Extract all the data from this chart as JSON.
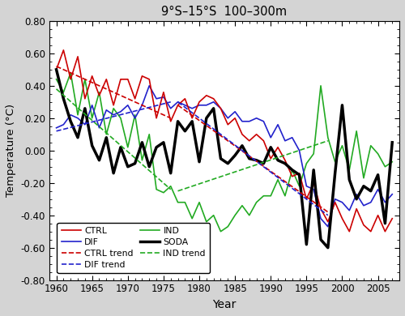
{
  "title": "9°S–15°S  100–300m",
  "xlabel": "Year",
  "ylabel": "Temperature (°C)",
  "xlim": [
    1959,
    2008
  ],
  "ylim": [
    -0.8,
    0.8
  ],
  "yticks": [
    -0.8,
    -0.6,
    -0.4,
    -0.2,
    0.0,
    0.2,
    0.4,
    0.6,
    0.8
  ],
  "xticks": [
    1960,
    1965,
    1970,
    1975,
    1980,
    1985,
    1990,
    1995,
    2000,
    2005
  ],
  "soda_years": [
    1960,
    1961,
    1962,
    1963,
    1964,
    1965,
    1966,
    1967,
    1968,
    1969,
    1970,
    1971,
    1972,
    1973,
    1974,
    1975,
    1976,
    1977,
    1978,
    1979,
    1980,
    1981,
    1982,
    1983,
    1984,
    1985,
    1986,
    1987,
    1988,
    1989,
    1990,
    1991,
    1992,
    1993,
    1994,
    1995,
    1996,
    1997,
    1998,
    1999,
    2000,
    2001,
    2002,
    2003,
    2004,
    2005,
    2006,
    2007
  ],
  "soda_vals": [
    0.5,
    0.32,
    0.18,
    0.08,
    0.26,
    0.03,
    -0.06,
    0.08,
    -0.14,
    0.02,
    -0.1,
    -0.08,
    0.05,
    -0.1,
    0.02,
    0.05,
    -0.14,
    0.18,
    0.12,
    0.18,
    -0.07,
    0.2,
    0.26,
    -0.05,
    -0.08,
    -0.03,
    0.03,
    -0.05,
    -0.06,
    -0.08,
    0.02,
    -0.06,
    -0.08,
    -0.12,
    -0.15,
    -0.58,
    -0.12,
    -0.55,
    -0.6,
    -0.14,
    0.28,
    -0.18,
    -0.3,
    -0.22,
    -0.25,
    -0.15,
    -0.45,
    0.05
  ],
  "ctrl_years": [
    1960,
    1961,
    1962,
    1963,
    1964,
    1965,
    1966,
    1967,
    1968,
    1969,
    1970,
    1971,
    1972,
    1973,
    1974,
    1975,
    1976,
    1977,
    1978,
    1979,
    1980,
    1981,
    1982,
    1983,
    1984,
    1985,
    1986,
    1987,
    1988,
    1989,
    1990,
    1991,
    1992,
    1993,
    1994,
    1995,
    1996,
    1997,
    1998,
    1999,
    2000,
    2001,
    2002,
    2003,
    2004,
    2005,
    2006,
    2007
  ],
  "ctrl_vals": [
    0.5,
    0.62,
    0.44,
    0.58,
    0.32,
    0.46,
    0.34,
    0.44,
    0.28,
    0.44,
    0.44,
    0.32,
    0.46,
    0.44,
    0.2,
    0.36,
    0.18,
    0.28,
    0.32,
    0.2,
    0.3,
    0.34,
    0.32,
    0.26,
    0.16,
    0.2,
    0.1,
    0.06,
    0.1,
    0.06,
    -0.05,
    0.02,
    -0.06,
    -0.16,
    -0.14,
    -0.3,
    -0.2,
    -0.36,
    -0.44,
    -0.32,
    -0.42,
    -0.5,
    -0.36,
    -0.46,
    -0.5,
    -0.4,
    -0.5,
    -0.42
  ],
  "ind_years": [
    1960,
    1961,
    1962,
    1963,
    1964,
    1965,
    1966,
    1967,
    1968,
    1969,
    1970,
    1971,
    1972,
    1973,
    1974,
    1975,
    1976,
    1977,
    1978,
    1979,
    1980,
    1981,
    1982,
    1983,
    1984,
    1985,
    1986,
    1987,
    1988,
    1989,
    1990,
    1991,
    1992,
    1993,
    1994,
    1995,
    1996,
    1997,
    1998,
    1999,
    2000,
    2001,
    2002,
    2003,
    2004,
    2005,
    2006,
    2007
  ],
  "ind_vals": [
    0.44,
    0.36,
    0.48,
    0.22,
    0.44,
    0.2,
    0.36,
    0.1,
    0.26,
    0.2,
    0.02,
    0.22,
    -0.06,
    0.1,
    -0.24,
    -0.26,
    -0.22,
    -0.32,
    -0.32,
    -0.42,
    -0.32,
    -0.44,
    -0.4,
    -0.5,
    -0.47,
    -0.4,
    -0.34,
    -0.4,
    -0.32,
    -0.28,
    -0.28,
    -0.18,
    -0.28,
    -0.12,
    -0.22,
    -0.08,
    -0.02,
    0.4,
    0.08,
    -0.07,
    0.03,
    -0.12,
    0.12,
    -0.17,
    0.03,
    -0.02,
    -0.1,
    -0.07
  ],
  "dif_years": [
    1960,
    1961,
    1962,
    1963,
    1964,
    1965,
    1966,
    1967,
    1968,
    1969,
    1970,
    1971,
    1972,
    1973,
    1974,
    1975,
    1976,
    1977,
    1978,
    1979,
    1980,
    1981,
    1982,
    1983,
    1984,
    1985,
    1986,
    1987,
    1988,
    1989,
    1990,
    1991,
    1992,
    1993,
    1994,
    1995,
    1996,
    1997,
    1998,
    1999,
    2000,
    2001,
    2002,
    2003,
    2004,
    2005,
    2006,
    2007
  ],
  "dif_vals": [
    0.14,
    0.16,
    0.22,
    0.2,
    0.16,
    0.28,
    0.14,
    0.25,
    0.22,
    0.24,
    0.28,
    0.2,
    0.28,
    0.4,
    0.32,
    0.33,
    0.26,
    0.3,
    0.28,
    0.26,
    0.28,
    0.28,
    0.3,
    0.26,
    0.2,
    0.24,
    0.18,
    0.18,
    0.2,
    0.18,
    0.08,
    0.16,
    0.06,
    0.08,
    0.0,
    -0.22,
    -0.24,
    -0.42,
    -0.47,
    -0.3,
    -0.32,
    -0.37,
    -0.27,
    -0.34,
    -0.32,
    -0.24,
    -0.32,
    -0.27
  ],
  "ctrl_trend1_x": [
    1960,
    1976
  ],
  "ctrl_trend1_y": [
    0.52,
    0.2
  ],
  "ctrl_trend2_x": [
    1977,
    1998
  ],
  "ctrl_trend2_y": [
    0.28,
    -0.38
  ],
  "ind_trend1_x": [
    1960,
    1976
  ],
  "ind_trend1_y": [
    0.38,
    -0.24
  ],
  "ind_trend2_x": [
    1977,
    1998
  ],
  "ind_trend2_y": [
    -0.25,
    0.06
  ],
  "dif_trend1_x": [
    1960,
    1976
  ],
  "dif_trend1_y": [
    0.12,
    0.3
  ],
  "dif_trend2_x": [
    1977,
    1998
  ],
  "dif_trend2_y": [
    0.3,
    -0.4
  ],
  "colors": {
    "soda": "#000000",
    "ctrl": "#cc0000",
    "ind": "#22aa22",
    "dif": "#2222cc"
  },
  "bg_color": "#d4d4d4"
}
